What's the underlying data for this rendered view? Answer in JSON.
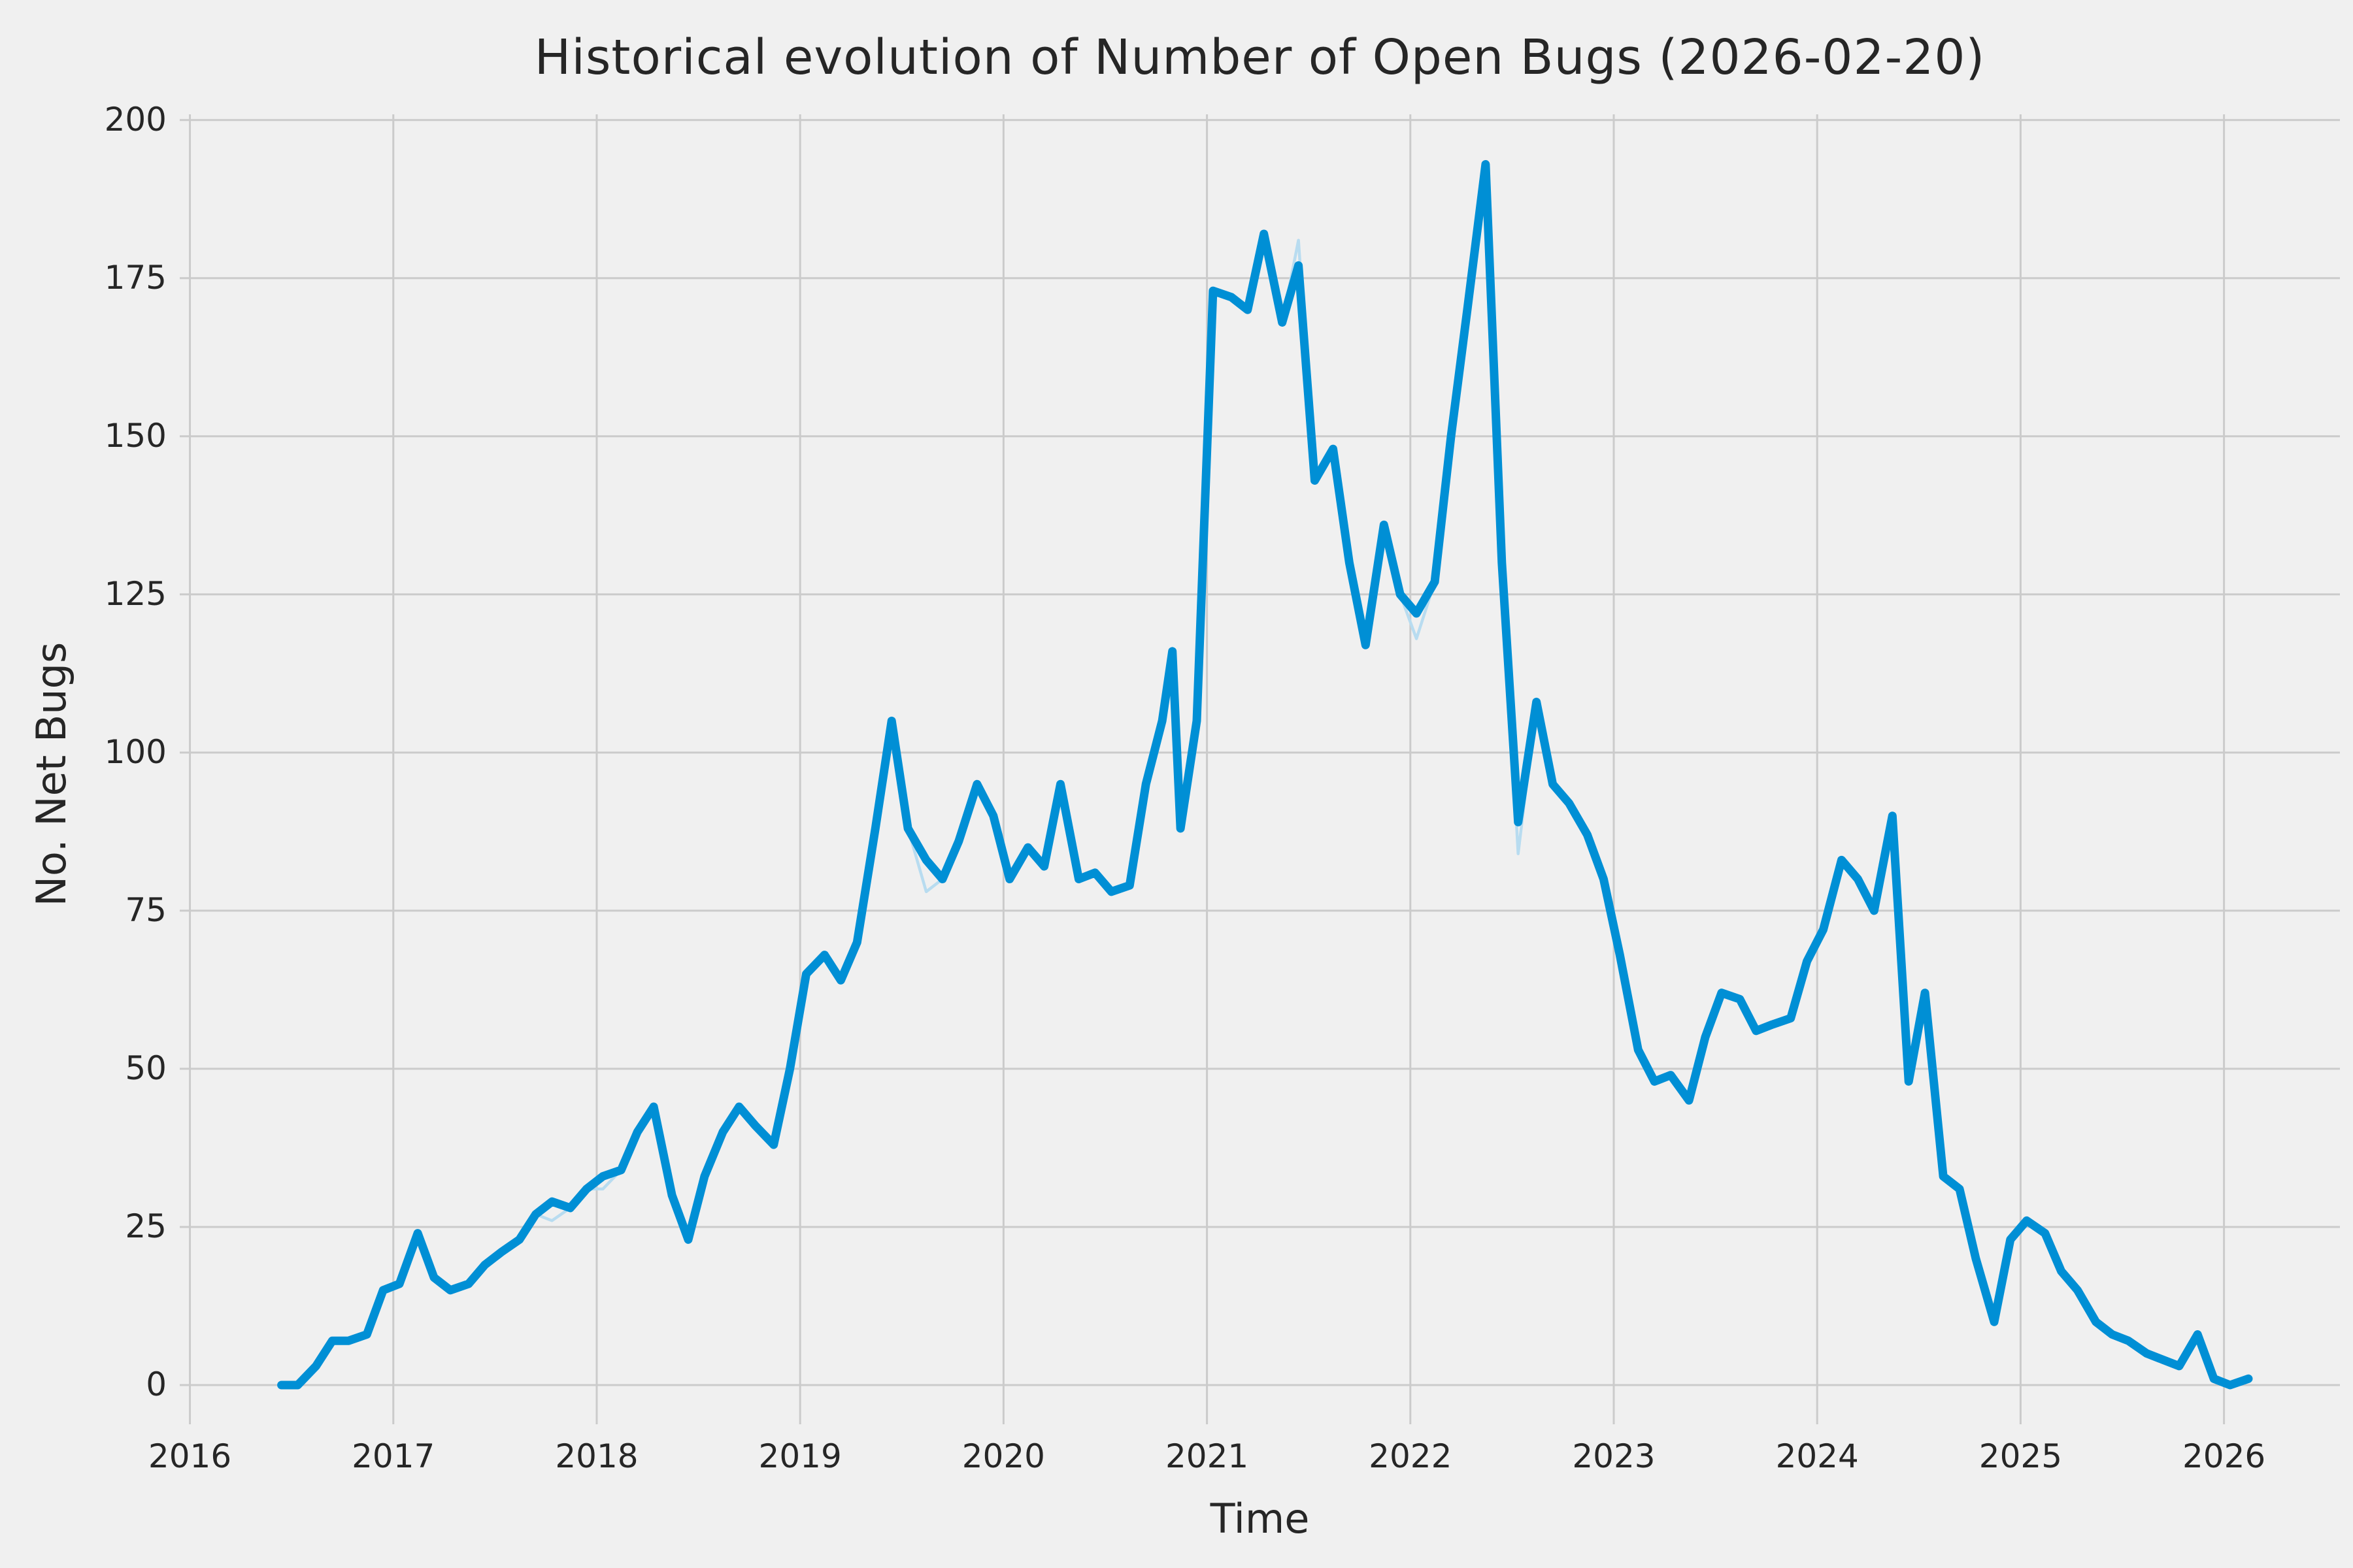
{
  "chart_data": {
    "type": "line",
    "title": "Historical evolution of Number of Open Bugs (2026-02-20)",
    "xlabel": "Time",
    "ylabel": "No. Net Bugs",
    "x": [
      2016.45,
      2016.53,
      2016.62,
      2016.7,
      2016.78,
      2016.87,
      2016.95,
      2017.03,
      2017.12,
      2017.2,
      2017.28,
      2017.37,
      2017.45,
      2017.53,
      2017.62,
      2017.7,
      2017.78,
      2017.87,
      2017.95,
      2018.03,
      2018.12,
      2018.2,
      2018.28,
      2018.37,
      2018.45,
      2018.53,
      2018.62,
      2018.7,
      2018.78,
      2018.87,
      2018.95,
      2019.03,
      2019.12,
      2019.2,
      2019.28,
      2019.37,
      2019.45,
      2019.53,
      2019.62,
      2019.7,
      2019.78,
      2019.87,
      2019.95,
      2020.03,
      2020.12,
      2020.2,
      2020.28,
      2020.37,
      2020.45,
      2020.53,
      2020.62,
      2020.7,
      2020.78,
      2020.83,
      2020.87,
      2020.95,
      2021.03,
      2021.12,
      2021.2,
      2021.28,
      2021.37,
      2021.45,
      2021.53,
      2021.62,
      2021.7,
      2021.78,
      2021.87,
      2021.95,
      2022.03,
      2022.12,
      2022.2,
      2022.28,
      2022.37,
      2022.45,
      2022.53,
      2022.62,
      2022.7,
      2022.78,
      2022.87,
      2022.95,
      2023.03,
      2023.12,
      2023.2,
      2023.28,
      2023.37,
      2023.45,
      2023.53,
      2023.62,
      2023.7,
      2023.78,
      2023.87,
      2023.95,
      2024.03,
      2024.12,
      2024.2,
      2024.28,
      2024.37,
      2024.45,
      2024.53,
      2024.62,
      2024.7,
      2024.78,
      2024.87,
      2024.95,
      2025.03,
      2025.12,
      2025.2,
      2025.28,
      2025.37,
      2025.45,
      2025.53,
      2025.62,
      2025.7,
      2025.78,
      2025.87,
      2025.95,
      2026.03,
      2026.12
    ],
    "values": [
      0,
      0,
      3,
      7,
      7,
      8,
      15,
      16,
      24,
      17,
      15,
      16,
      19,
      21,
      23,
      27,
      29,
      28,
      31,
      33,
      34,
      40,
      44,
      30,
      23,
      33,
      40,
      44,
      41,
      38,
      50,
      65,
      68,
      64,
      70,
      88,
      105,
      88,
      83,
      80,
      86,
      95,
      90,
      80,
      85,
      82,
      95,
      80,
      81,
      78,
      79,
      95,
      105,
      116,
      88,
      105,
      173,
      172,
      170,
      182,
      168,
      177,
      143,
      148,
      130,
      117,
      136,
      125,
      122,
      127,
      150,
      170,
      193,
      130,
      89,
      108,
      95,
      92,
      87,
      80,
      68,
      53,
      48,
      49,
      45,
      55,
      62,
      61,
      56,
      57,
      58,
      67,
      72,
      83,
      80,
      75,
      90,
      48,
      62,
      33,
      31,
      20,
      10,
      23,
      26,
      24,
      18,
      15,
      10,
      8,
      7,
      5,
      4,
      3,
      8,
      1,
      0,
      1
    ],
    "raw_deviations": [
      {
        "i": 16,
        "y": 26
      },
      {
        "i": 19,
        "y": 31
      },
      {
        "i": 38,
        "y": 78
      },
      {
        "i": 61,
        "y": 181
      },
      {
        "i": 68,
        "y": 118
      },
      {
        "i": 74,
        "y": 84
      }
    ],
    "xticks": [
      2016,
      2017,
      2018,
      2019,
      2020,
      2021,
      2022,
      2023,
      2024,
      2025,
      2026
    ],
    "yticks": [
      0,
      25,
      50,
      75,
      100,
      125,
      150,
      175,
      200
    ],
    "xlim": [
      2015.95,
      2026.57
    ],
    "ylim": [
      -6.2,
      200.9
    ],
    "grid": true,
    "legend": false,
    "colors": {
      "line": "#008fd5",
      "raw_line": "#b8dcf0",
      "background": "#f0f0f0",
      "grid": "#cbcbcb",
      "text": "#262626"
    }
  }
}
